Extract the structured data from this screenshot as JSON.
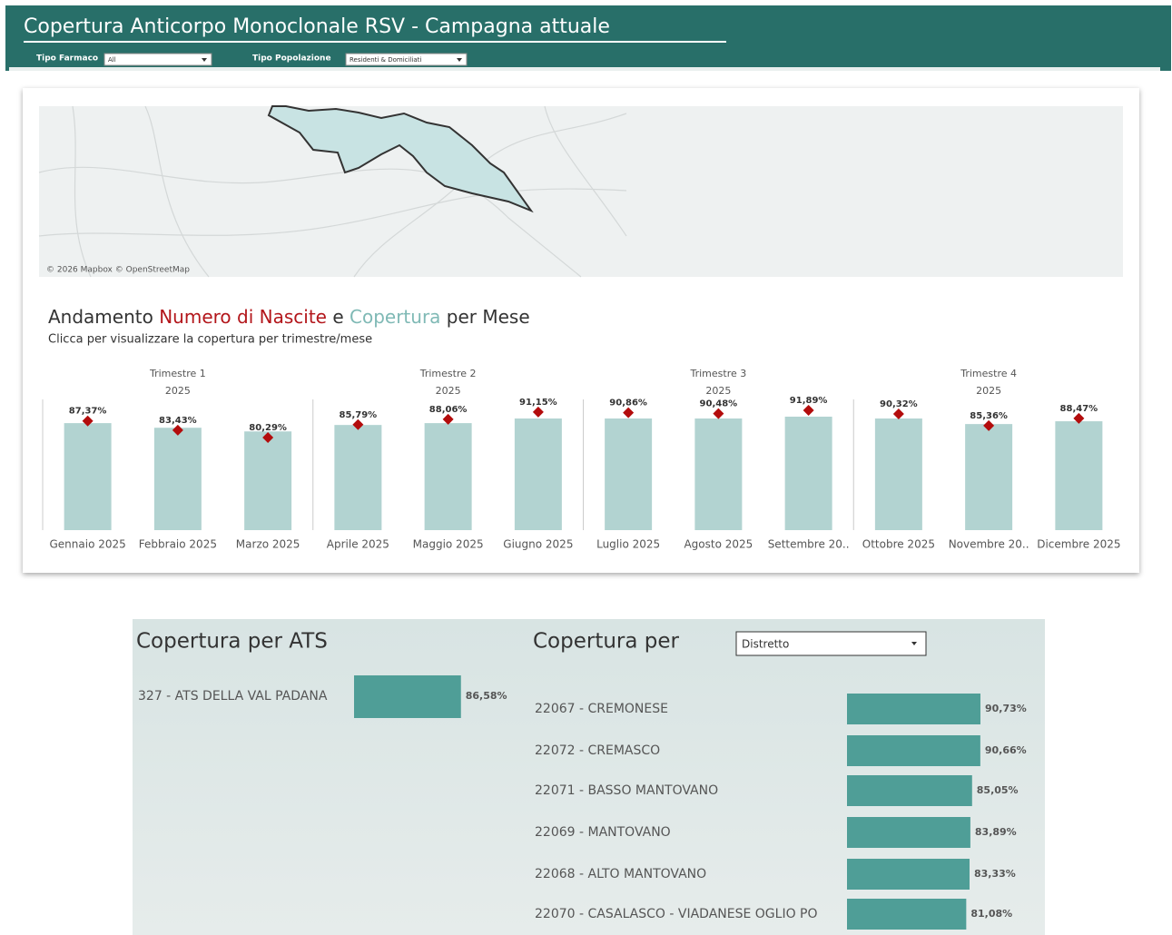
{
  "header": {
    "title": "Copertura Anticorpo Monoclonale RSV - Campagna attuale",
    "filters": [
      {
        "label": "Tipo Farmaco",
        "value": "All"
      },
      {
        "label": "Tipo Popolazione",
        "value": "Residenti & Domiciliati"
      }
    ]
  },
  "map": {
    "attribution": "© 2026 Mapbox © OpenStreetMap"
  },
  "monthly_chart": {
    "type": "bar",
    "title": {
      "part1": "Andamento ",
      "births": "Numero di Nascite",
      "part2": " e ",
      "coverage": "Copertura",
      "part3": " per Mese"
    },
    "subtitle": "Clicca per visualizzare la copertura per trimestre/mese",
    "groups": [
      {
        "label": "Trimestre 1",
        "year": "2025"
      },
      {
        "label": "Trimestre 2",
        "year": "2025"
      },
      {
        "label": "Trimestre 3",
        "year": "2025"
      },
      {
        "label": "Trimestre 4",
        "year": "2025"
      }
    ],
    "categories": [
      "Gennaio 2025",
      "Febbraio 2025",
      "Marzo 2025",
      "Aprile 2025",
      "Maggio 2025",
      "Giugno 2025",
      "Luglio 2025",
      "Agosto 2025",
      "Settembre 20..",
      "Ottobre 2025",
      "Novembre 20..",
      "Dicembre 2025"
    ],
    "series": [
      {
        "name": "Numero di Nascite",
        "color": "#b2d3d1",
        "values": [
          580,
          555,
          535,
          570,
          580,
          605,
          605,
          605,
          615,
          605,
          575,
          590
        ]
      },
      {
        "name": "Copertura",
        "color": "#b30c0c",
        "values": [
          87.37,
          83.43,
          80.29,
          85.79,
          88.06,
          91.15,
          90.86,
          90.48,
          91.89,
          90.32,
          85.36,
          88.47
        ],
        "value_labels": [
          "87,37%",
          "83,43%",
          "80,29%",
          "85,79%",
          "88,06%",
          "91,15%",
          "90,86%",
          "90,48%",
          "91,89%",
          "90,32%",
          "85,36%",
          "88,47%"
        ]
      }
    ]
  },
  "ats_chart": {
    "type": "bar",
    "title": "Copertura per ATS",
    "categories": [
      "327 - ATS DELLA VAL PADANA"
    ],
    "values": [
      86.58
    ],
    "value_labels": [
      "86,58%"
    ],
    "color": "#4f9e97"
  },
  "district_chart": {
    "type": "bar",
    "title": "Copertura per",
    "dropdown": "Distretto",
    "categories": [
      "22067 - CREMONESE",
      "22072 - CREMASCO",
      "22071 - BASSO MANTOVANO",
      "22069 - MANTOVANO",
      "22068 - ALTO MANTOVANO",
      "22070 - CASALASCO - VIADANESE OGLIO PO"
    ],
    "values": [
      90.73,
      90.66,
      85.05,
      83.89,
      83.33,
      81.08
    ],
    "value_labels": [
      "90,73%",
      "90,66%",
      "85,05%",
      "83,89%",
      "83,33%",
      "81,08%"
    ],
    "color": "#4f9e97"
  }
}
